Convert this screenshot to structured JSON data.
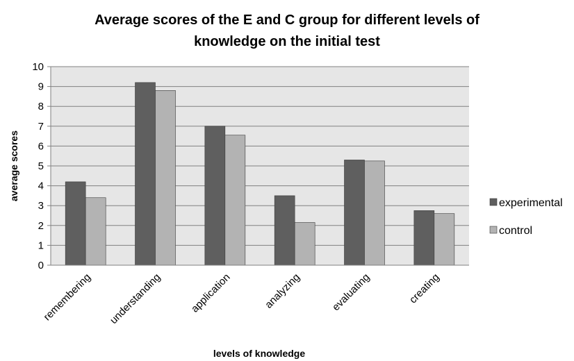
{
  "chart_data": {
    "type": "bar",
    "title_lines": [
      "Average scores of the E and C group for different levels  of",
      "knowledge on the initial test"
    ],
    "xlabel": "levels of knowledge",
    "ylabel": "average scores",
    "categories": [
      "remembering",
      "understanding",
      "application",
      "analyzing",
      "evaluating",
      "creating"
    ],
    "series": [
      {
        "name": "experimental",
        "color": "#5f5f5f",
        "values": [
          4.2,
          9.2,
          7.0,
          3.5,
          5.3,
          2.75
        ]
      },
      {
        "name": "control",
        "color": "#b3b3b3",
        "values": [
          3.4,
          8.8,
          6.55,
          2.15,
          5.25,
          2.6
        ]
      }
    ],
    "ylim": [
      0,
      10
    ],
    "yticks": [
      0,
      1,
      2,
      3,
      4,
      5,
      6,
      7,
      8,
      9,
      10
    ],
    "grid": true,
    "plot_background": "#e6e6e6",
    "legend_position": "right"
  }
}
